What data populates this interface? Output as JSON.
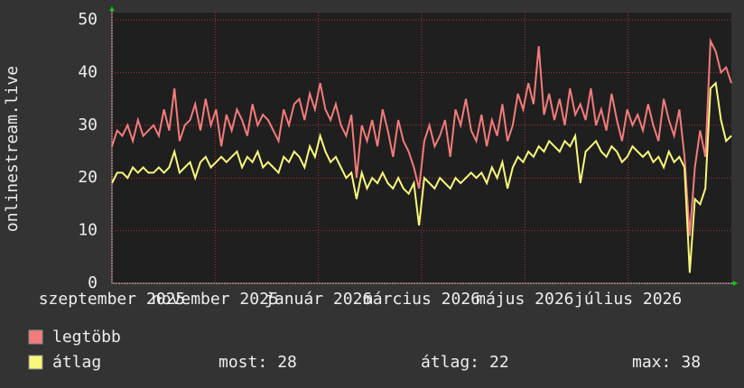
{
  "chart_data": {
    "type": "line",
    "y_label": "onlinestream.live",
    "xlim": [
      "2025-09",
      "2026-09"
    ],
    "xticks": [
      {
        "value": "2025-09",
        "label": "szeptember 2025"
      },
      {
        "value": "2025-11",
        "label": "november 2025"
      },
      {
        "value": "2026-01",
        "label": "január 2026"
      },
      {
        "value": "2026-03",
        "label": "március 2026"
      },
      {
        "value": "2026-05",
        "label": "május 2026"
      },
      {
        "value": "2026-07",
        "label": "július 2026"
      }
    ],
    "ylim": [
      0,
      50
    ],
    "yticks": [
      0,
      10,
      20,
      30,
      40,
      50
    ],
    "grid": true,
    "series": [
      {
        "name": "legtöbb",
        "color": "#f47b7b",
        "values": [
          26,
          29,
          28,
          30,
          27,
          31,
          28,
          29,
          30,
          28,
          33,
          29,
          37,
          27,
          30,
          31,
          34,
          29,
          35,
          30,
          33,
          26,
          32,
          29,
          33,
          31,
          28,
          34,
          30,
          32,
          31,
          29,
          27,
          33,
          30,
          34,
          35,
          31,
          36,
          33,
          38,
          33,
          31,
          34,
          30,
          28,
          32,
          20,
          30,
          27,
          31,
          26,
          33,
          29,
          24,
          31,
          27,
          25,
          22,
          18,
          27,
          30,
          26,
          28,
          31,
          24,
          33,
          30,
          35,
          29,
          27,
          32,
          26,
          31,
          28,
          34,
          27,
          30,
          36,
          33,
          38,
          34,
          45,
          32,
          36,
          31,
          35,
          30,
          37,
          32,
          34,
          31,
          37,
          30,
          33,
          29,
          36,
          31,
          27,
          33,
          30,
          32,
          29,
          34,
          30,
          27,
          35,
          31,
          28,
          33,
          24,
          9,
          22,
          29,
          24,
          46,
          44,
          40,
          41,
          38
        ]
      },
      {
        "name": "átlag",
        "color": "#f8f87c",
        "values": [
          19,
          21,
          21,
          20,
          22,
          21,
          22,
          21,
          21,
          22,
          21,
          22,
          25,
          21,
          22,
          23,
          20,
          23,
          24,
          22,
          23,
          24,
          23,
          24,
          25,
          22,
          24,
          23,
          25,
          22,
          23,
          22,
          21,
          24,
          23,
          25,
          24,
          22,
          26,
          24,
          28,
          25,
          23,
          24,
          22,
          20,
          21,
          16,
          21,
          18,
          20,
          19,
          21,
          19,
          18,
          20,
          18,
          17,
          19,
          11,
          20,
          19,
          18,
          20,
          19,
          18,
          20,
          19,
          20,
          21,
          20,
          21,
          19,
          22,
          20,
          23,
          18,
          22,
          24,
          23,
          25,
          24,
          26,
          25,
          27,
          26,
          25,
          27,
          26,
          28,
          19,
          25,
          26,
          27,
          25,
          24,
          26,
          25,
          23,
          24,
          26,
          25,
          24,
          25,
          23,
          24,
          22,
          25,
          23,
          24,
          22,
          2,
          16,
          15,
          18,
          37,
          38,
          31,
          27,
          28
        ]
      }
    ],
    "stats": [
      {
        "label": "most:",
        "value": 28
      },
      {
        "label": "átlag:",
        "value": 22
      },
      {
        "label": "max:",
        "value": 38
      }
    ]
  }
}
